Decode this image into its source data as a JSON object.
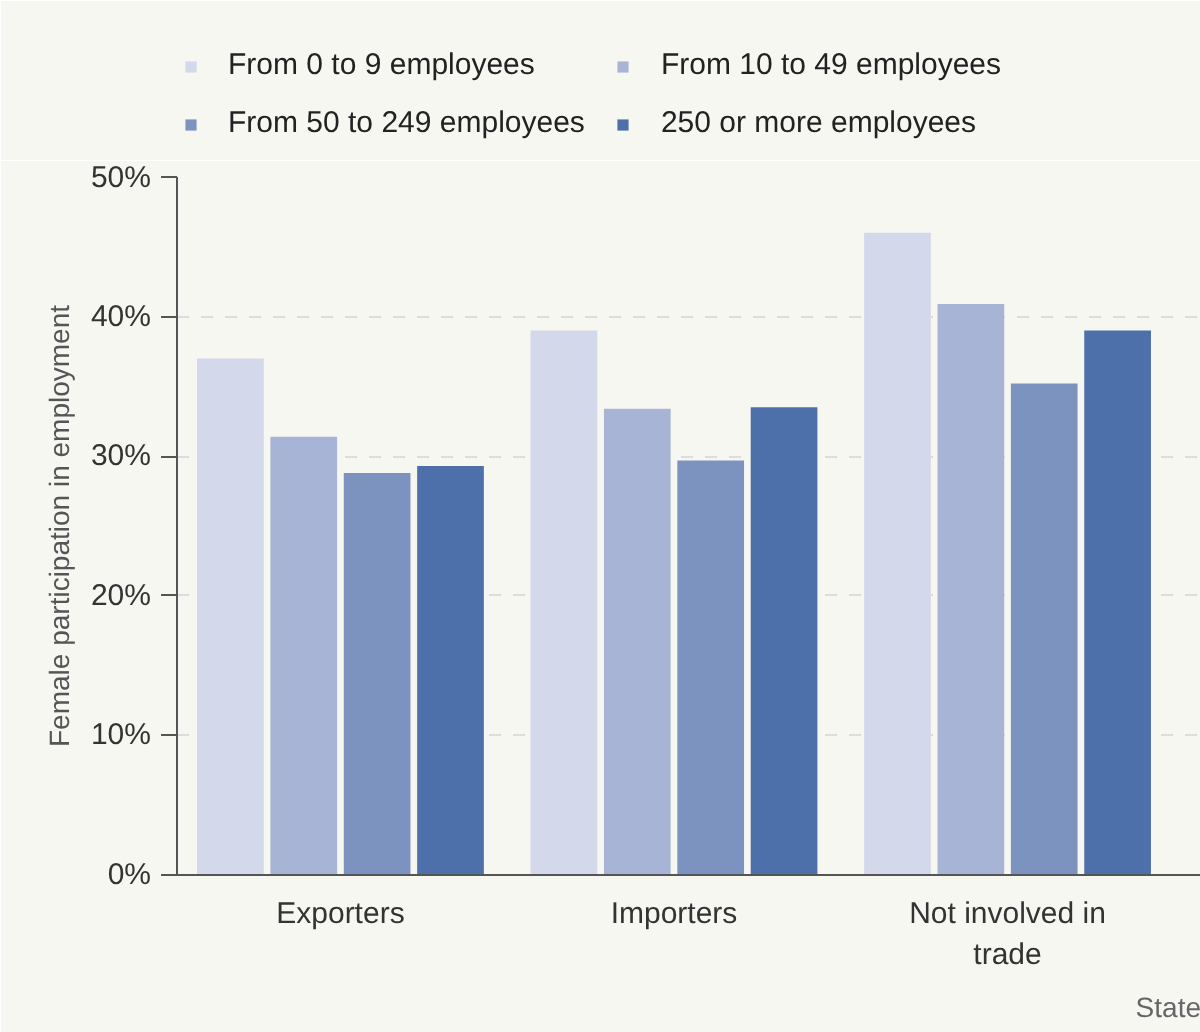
{
  "chart_data": {
    "type": "bar",
    "ylabel": "Female participation in employment",
    "categories": [
      "Exporters",
      "Importers",
      "Not involved in trade"
    ],
    "series": [
      {
        "name": "From 0 to 9 employees",
        "color": "#d3d8ea",
        "values": [
          37.0,
          39.0,
          46.0
        ]
      },
      {
        "name": "From 10 to 49 employees",
        "color": "#a7b4d5",
        "values": [
          31.4,
          33.4,
          40.9
        ]
      },
      {
        "name": "From 50 to 249 employees",
        "color": "#7c93c0",
        "values": [
          28.8,
          29.7,
          35.2
        ]
      },
      {
        "name": "250 or more employees",
        "color": "#4d70ab",
        "values": [
          29.3,
          33.5,
          39.0
        ]
      }
    ],
    "ylim": [
      0,
      50
    ],
    "yticks": [
      {
        "value": 0,
        "label": "0%"
      },
      {
        "value": 10,
        "label": "10%"
      },
      {
        "value": 20,
        "label": "20%"
      },
      {
        "value": 30,
        "label": "30%"
      },
      {
        "value": 40,
        "label": "40%"
      },
      {
        "value": 50,
        "label": "50%"
      }
    ],
    "grid": "y",
    "legend": "top",
    "annotations": [
      "State"
    ]
  }
}
